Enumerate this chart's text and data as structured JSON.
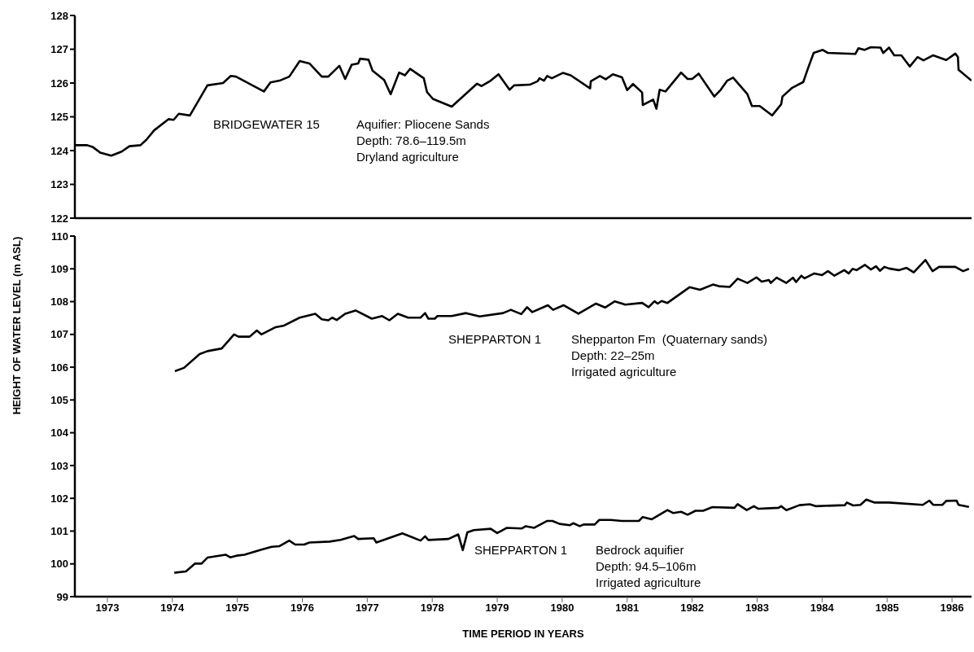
{
  "chart_data": [
    {
      "type": "line",
      "xlim": [
        1972.5,
        1986.3
      ],
      "ylim": [
        122,
        128
      ],
      "yticks": [
        122,
        123,
        124,
        125,
        126,
        127,
        128
      ],
      "tick_labels": "y",
      "marker": "none",
      "line_style": "solid",
      "series": [
        {
          "color": "#000000",
          "x": [
            1972.51,
            1972.69,
            1972.78,
            1972.89,
            1973.06,
            1973.22,
            1973.34,
            1973.51,
            1973.6,
            1973.72,
            1973.94,
            1974.02,
            1974.1,
            1974.27,
            1974.54,
            1974.78,
            1974.9,
            1974.98,
            1975.41,
            1975.51,
            1975.65,
            1975.8,
            1975.96,
            1976.11,
            1976.3,
            1976.4,
            1976.57,
            1976.66,
            1976.76,
            1976.86,
            1976.89,
            1977.02,
            1977.08,
            1977.26,
            1977.36,
            1977.49,
            1977.58,
            1977.66,
            1977.87,
            1977.92,
            1978.01,
            1978.3,
            1978.69,
            1978.76,
            1978.9,
            1979.02,
            1979.19,
            1979.26,
            1979.5,
            1979.62,
            1979.65,
            1979.72,
            1979.77,
            1979.84,
            1980.01,
            1980.13,
            1980.43,
            1980.44,
            1980.58,
            1980.67,
            1980.78,
            1980.92,
            1981.0,
            1981.09,
            1981.23,
            1981.24,
            1981.4,
            1981.45,
            1981.5,
            1981.59,
            1981.83,
            1981.93,
            1982.0,
            1982.1,
            1982.34,
            1982.44,
            1982.54,
            1982.63,
            1982.85,
            1982.92,
            1983.04,
            1983.23,
            1983.37,
            1983.39,
            1983.54,
            1983.71,
            1983.78,
            1983.87,
            1984.01,
            1984.09,
            1984.51,
            1984.56,
            1984.65,
            1984.75,
            1984.9,
            1984.94,
            1985.03,
            1985.11,
            1985.22,
            1985.35,
            1985.47,
            1985.56,
            1985.71,
            1985.91,
            1986.05,
            1986.09,
            1986.1,
            1986.3
          ],
          "values": [
            124.16,
            124.16,
            124.1,
            123.94,
            123.85,
            123.97,
            124.13,
            124.16,
            124.32,
            124.6,
            124.93,
            124.91,
            125.09,
            125.04,
            125.93,
            126.0,
            126.21,
            126.19,
            125.75,
            126.02,
            126.07,
            126.19,
            126.65,
            126.58,
            126.19,
            126.19,
            126.51,
            126.12,
            126.54,
            126.58,
            126.72,
            126.69,
            126.37,
            126.09,
            125.67,
            126.31,
            126.23,
            126.42,
            126.14,
            125.73,
            125.53,
            125.3,
            125.98,
            125.91,
            126.07,
            126.26,
            125.8,
            125.93,
            125.95,
            126.05,
            126.14,
            126.07,
            126.21,
            126.14,
            126.3,
            126.23,
            125.84,
            126.05,
            126.21,
            126.11,
            126.26,
            126.17,
            125.79,
            125.97,
            125.72,
            125.35,
            125.51,
            125.24,
            125.8,
            125.75,
            126.31,
            126.12,
            126.12,
            126.28,
            125.6,
            125.8,
            126.07,
            126.16,
            125.67,
            125.32,
            125.32,
            125.04,
            125.37,
            125.6,
            125.86,
            126.03,
            126.42,
            126.89,
            126.98,
            126.89,
            126.86,
            127.03,
            126.98,
            127.06,
            127.05,
            126.89,
            127.05,
            126.82,
            126.82,
            126.49,
            126.77,
            126.67,
            126.82,
            126.68,
            126.87,
            126.77,
            126.39,
            126.07
          ]
        }
      ],
      "annotations": [
        "BRIDGEWATER 15",
        "Aquifier: Pliocene Sands\nDepth: 78.6–119.5m\nDryland agriculture"
      ]
    },
    {
      "type": "line",
      "xlim": [
        1972.5,
        1986.3
      ],
      "ylim": [
        99,
        110
      ],
      "yticks": [
        99,
        100,
        101,
        102,
        103,
        104,
        105,
        106,
        107,
        108,
        109,
        110
      ],
      "xticks": [
        1973,
        1974,
        1975,
        1976,
        1977,
        1978,
        1979,
        1980,
        1981,
        1982,
        1983,
        1984,
        1985,
        1986
      ],
      "xlabel": "TIME PERIOD IN YEARS",
      "ylabel": "HEIGHT OF WATER LEVEL (m ASL)",
      "marker": "none",
      "line_style": "solid",
      "series": [
        {
          "color": "#000000",
          "x": [
            1974.04,
            1974.18,
            1974.42,
            1974.54,
            1974.76,
            1974.95,
            1975.02,
            1975.19,
            1975.3,
            1975.37,
            1975.59,
            1975.72,
            1975.96,
            1976.2,
            1976.3,
            1976.4,
            1976.46,
            1976.53,
            1976.66,
            1976.82,
            1977.07,
            1977.23,
            1977.34,
            1977.47,
            1977.63,
            1977.82,
            1977.89,
            1977.94,
            1978.04,
            1978.08,
            1978.3,
            1978.52,
            1978.73,
            1979.09,
            1979.21,
            1979.37,
            1979.46,
            1979.54,
            1979.78,
            1979.86,
            1980.02,
            1980.25,
            1980.52,
            1980.66,
            1980.81,
            1980.97,
            1981.23,
            1981.33,
            1981.42,
            1981.47,
            1981.53,
            1981.62,
            1981.96,
            1982.12,
            1982.32,
            1982.41,
            1982.58,
            1982.7,
            1982.85,
            1982.99,
            1983.07,
            1983.18,
            1983.21,
            1983.3,
            1983.45,
            1983.55,
            1983.6,
            1983.68,
            1983.73,
            1983.88,
            1984.0,
            1984.09,
            1984.19,
            1984.34,
            1984.41,
            1984.47,
            1984.53,
            1984.66,
            1984.75,
            1984.83,
            1984.89,
            1984.96,
            1985.03,
            1985.18,
            1985.3,
            1985.41,
            1985.59,
            1985.7,
            1985.8,
            1986.05,
            1986.17,
            1986.26
          ],
          "values": [
            105.88,
            105.98,
            106.4,
            106.49,
            106.57,
            107.0,
            106.93,
            106.93,
            107.12,
            107.0,
            107.22,
            107.27,
            107.51,
            107.63,
            107.46,
            107.43,
            107.51,
            107.44,
            107.63,
            107.73,
            107.48,
            107.56,
            107.43,
            107.63,
            107.51,
            107.51,
            107.65,
            107.48,
            107.48,
            107.56,
            107.56,
            107.65,
            107.55,
            107.65,
            107.75,
            107.62,
            107.83,
            107.68,
            107.89,
            107.75,
            107.89,
            107.63,
            107.94,
            107.82,
            108.01,
            107.91,
            107.96,
            107.83,
            108.01,
            107.94,
            108.02,
            107.96,
            108.44,
            108.36,
            108.52,
            108.47,
            108.45,
            108.7,
            108.57,
            108.74,
            108.61,
            108.66,
            108.57,
            108.73,
            108.57,
            108.73,
            108.6,
            108.79,
            108.71,
            108.86,
            108.81,
            108.93,
            108.79,
            108.96,
            108.86,
            109.0,
            108.96,
            109.12,
            108.98,
            109.08,
            108.94,
            109.06,
            109.01,
            108.96,
            109.03,
            108.89,
            109.27,
            108.93,
            109.06,
            109.06,
            108.93,
            109.0
          ]
        },
        {
          "color": "#000000",
          "x": [
            1974.03,
            1974.21,
            1974.35,
            1974.45,
            1974.54,
            1974.82,
            1974.89,
            1974.99,
            1975.11,
            1975.36,
            1975.53,
            1975.65,
            1975.8,
            1975.89,
            1976.03,
            1976.11,
            1976.42,
            1976.59,
            1976.71,
            1976.8,
            1976.86,
            1977.1,
            1977.14,
            1977.54,
            1977.82,
            1977.89,
            1977.94,
            1978.25,
            1978.4,
            1978.47,
            1978.54,
            1978.64,
            1978.9,
            1979.0,
            1979.15,
            1979.38,
            1979.44,
            1979.57,
            1979.77,
            1979.85,
            1979.96,
            1980.12,
            1980.17,
            1980.27,
            1980.33,
            1980.5,
            1980.57,
            1980.75,
            1980.92,
            1981.18,
            1981.24,
            1981.38,
            1981.62,
            1981.71,
            1981.83,
            1981.93,
            1982.05,
            1982.17,
            1982.31,
            1982.65,
            1982.7,
            1982.84,
            1982.95,
            1983.02,
            1983.33,
            1983.37,
            1983.45,
            1983.65,
            1983.81,
            1983.9,
            1984.35,
            1984.38,
            1984.48,
            1984.59,
            1984.68,
            1984.81,
            1985.03,
            1985.55,
            1985.65,
            1985.71,
            1985.85,
            1985.91,
            1986.07,
            1986.1,
            1986.26
          ],
          "values": [
            99.73,
            99.77,
            100.01,
            100.01,
            100.19,
            100.28,
            100.2,
            100.25,
            100.28,
            100.43,
            100.52,
            100.54,
            100.71,
            100.59,
            100.59,
            100.65,
            100.68,
            100.73,
            100.8,
            100.85,
            100.76,
            100.78,
            100.65,
            100.93,
            100.71,
            100.84,
            100.73,
            100.76,
            100.9,
            100.42,
            100.96,
            101.03,
            101.07,
            100.94,
            101.1,
            101.08,
            101.15,
            101.1,
            101.31,
            101.31,
            101.22,
            101.18,
            101.24,
            101.15,
            101.2,
            101.2,
            101.34,
            101.34,
            101.31,
            101.31,
            101.43,
            101.36,
            101.64,
            101.55,
            101.59,
            101.5,
            101.62,
            101.62,
            101.73,
            101.71,
            101.82,
            101.64,
            101.76,
            101.68,
            101.71,
            101.76,
            101.64,
            101.79,
            101.82,
            101.76,
            101.79,
            101.87,
            101.78,
            101.8,
            101.96,
            101.87,
            101.87,
            101.8,
            101.93,
            101.8,
            101.8,
            101.92,
            101.93,
            101.8,
            101.74
          ]
        }
      ],
      "annotations": [
        "SHEPPARTON 1",
        "Shepparton Fm  (Quaternary sands)\nDepth: 22–25m\nIrrigated agriculture",
        "SHEPPARTON 1",
        "Bedrock aquifier\nDepth: 94.5–106m\nIrrigated agriculture"
      ]
    }
  ]
}
